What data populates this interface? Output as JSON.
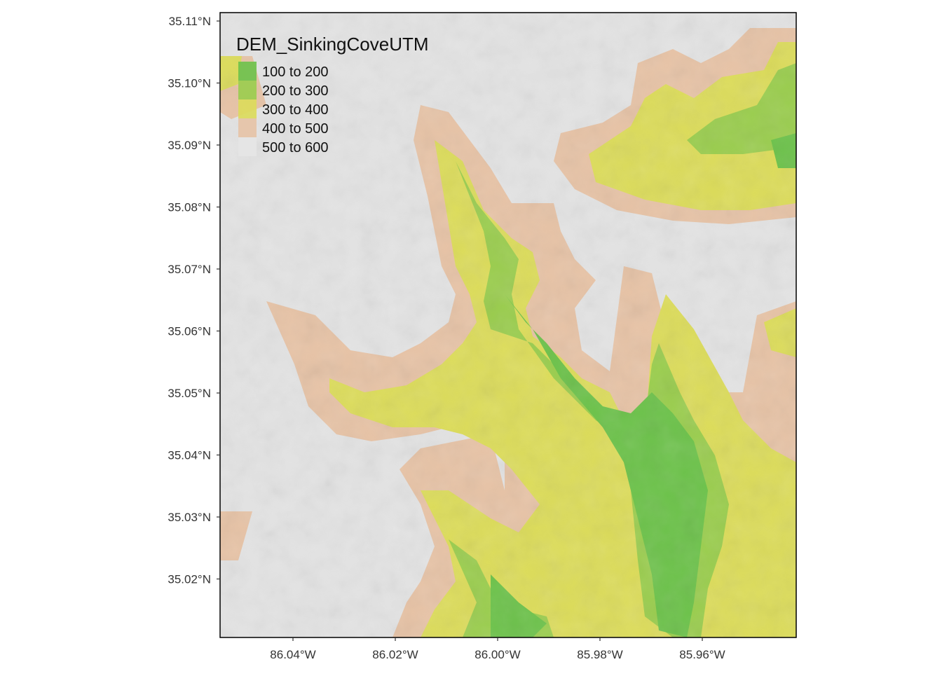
{
  "legend": {
    "title": "DEM_SinkingCoveUTM",
    "entries": [
      {
        "label": "100 to 200",
        "color": "#6cc24a"
      },
      {
        "label": "200 to 300",
        "color": "#9acd4e"
      },
      {
        "label": "300 to 400",
        "color": "#dcdc5a"
      },
      {
        "label": "400 to 500",
        "color": "#e7c3a6"
      },
      {
        "label": "500 to 600",
        "color": "#e6e6e6"
      }
    ]
  },
  "axes": {
    "lat_ticks": [
      "35.11°N",
      "35.10°N",
      "35.09°N",
      "35.08°N",
      "35.07°N",
      "35.06°N",
      "35.05°N",
      "35.04°N",
      "35.03°N",
      "35.02°N"
    ],
    "lon_ticks": [
      "86.04°W",
      "86.02°W",
      "86.00°W",
      "85.98°W",
      "85.96°W"
    ]
  },
  "colors": {
    "frame": "#000000",
    "background": "#e3e3e3"
  }
}
